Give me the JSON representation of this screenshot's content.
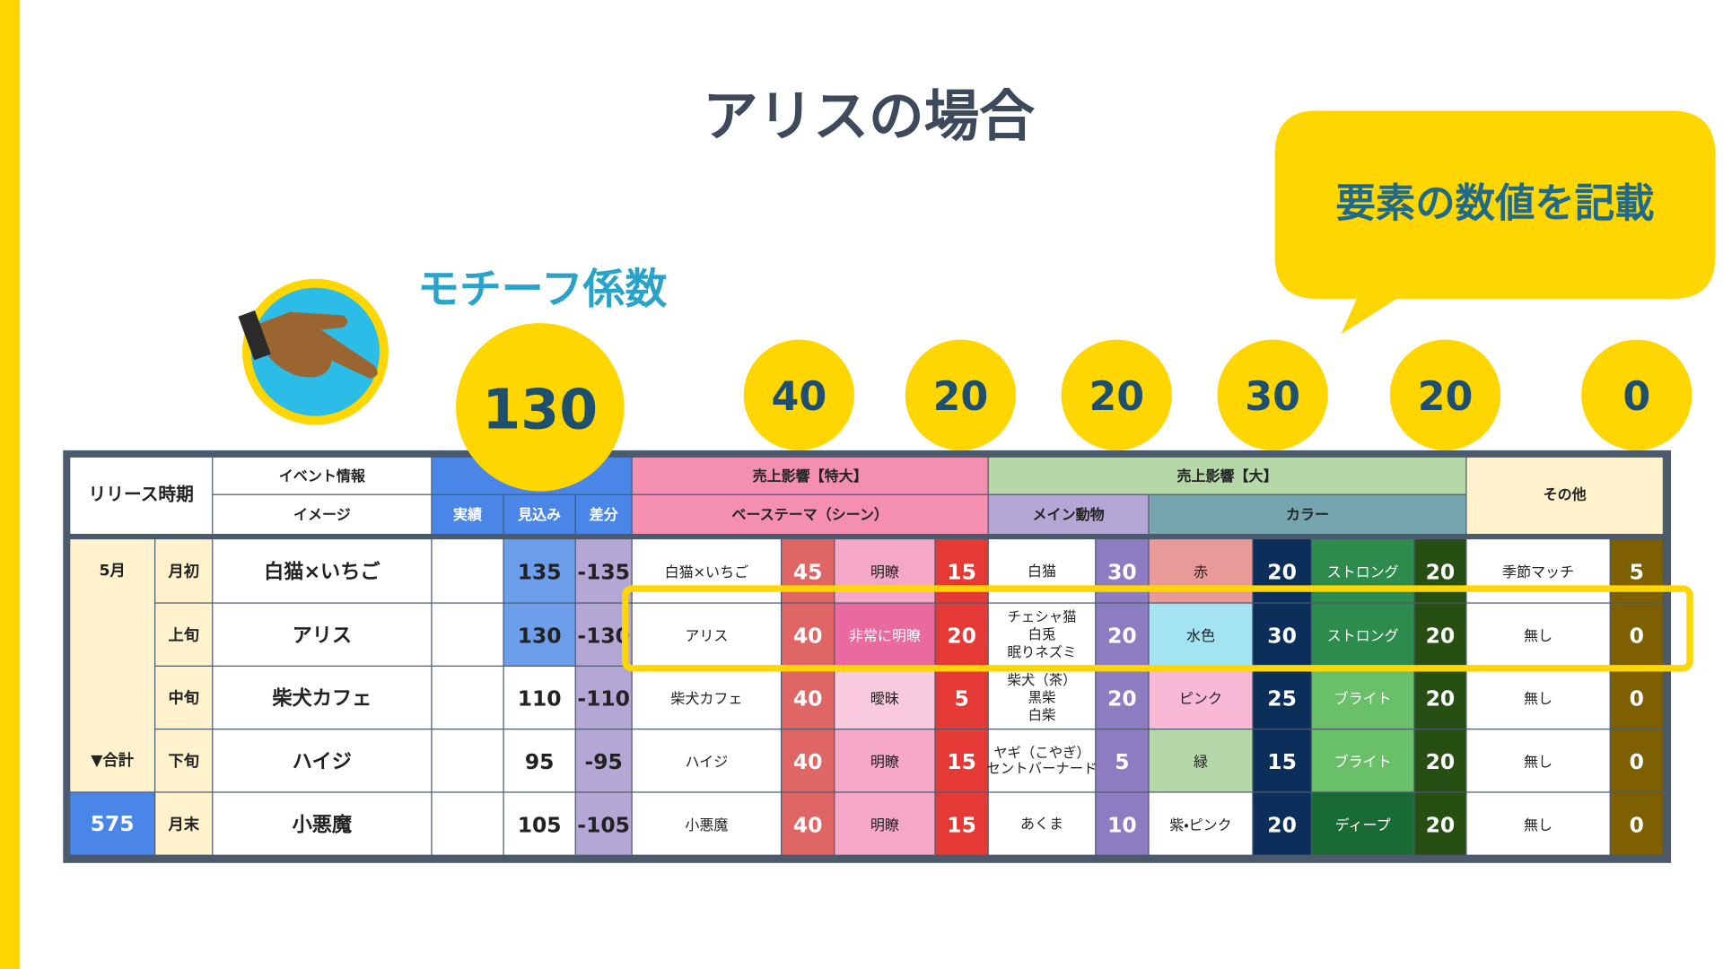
{
  "title": "アリスの場合",
  "callout": "要素の数値を記載",
  "motif_label": "モチーフ係数",
  "badges": [
    130,
    40,
    20,
    20,
    30,
    20,
    0
  ],
  "table": {
    "header": {
      "release": "リリース時期",
      "event": "イベント情報",
      "image": "イメージ",
      "actual": "実績",
      "forecast": "見込み",
      "diff": "差分",
      "sales_xl": "売上影響【特大】",
      "base_theme": "ベーステーマ（シーン）",
      "sales_l": "売上影響【大】",
      "main_animal": "メイン動物",
      "color": "カラー",
      "other": "その他"
    },
    "month": "5月",
    "total_label": "▼合計",
    "total": 575,
    "rows": [
      {
        "period": "月初",
        "event": "白猫×いちご",
        "forecast": 135,
        "diff": -135,
        "theme": "白猫×いちご",
        "theme_score": 45,
        "clarity": "明瞭",
        "clarity_score": 15,
        "animal": [
          "白猫"
        ],
        "animal_score": 30,
        "color": "赤",
        "color_score": 20,
        "tone": "ストロング",
        "tone_score": 20,
        "other": "季節マッチ",
        "other_score": 5
      },
      {
        "period": "上旬",
        "event": "アリス",
        "forecast": 130,
        "diff": -130,
        "theme": "アリス",
        "theme_score": 40,
        "clarity": "非常に明瞭",
        "clarity_score": 20,
        "animal": [
          "チェシャ猫",
          "白兎",
          "眠りネズミ"
        ],
        "animal_score": 20,
        "color": "水色",
        "color_score": 30,
        "tone": "ストロング",
        "tone_score": 20,
        "other": "無し",
        "other_score": 0
      },
      {
        "period": "中旬",
        "event": "柴犬カフェ",
        "forecast": 110,
        "diff": -110,
        "theme": "柴犬カフェ",
        "theme_score": 40,
        "clarity": "曖昧",
        "clarity_score": 5,
        "animal": [
          "柴犬（茶）",
          "黒柴",
          "白柴"
        ],
        "animal_score": 20,
        "color": "ピンク",
        "color_score": 25,
        "tone": "ブライト",
        "tone_score": 20,
        "other": "無し",
        "other_score": 0
      },
      {
        "period": "下旬",
        "event": "ハイジ",
        "forecast": 95,
        "diff": -95,
        "theme": "ハイジ",
        "theme_score": 40,
        "clarity": "明瞭",
        "clarity_score": 15,
        "animal": [
          "ヤギ（こやぎ）",
          "セントバーナード"
        ],
        "animal_score": 5,
        "color": "緑",
        "color_score": 15,
        "tone": "ブライト",
        "tone_score": 20,
        "other": "無し",
        "other_score": 0
      },
      {
        "period": "月末",
        "event": "小悪魔",
        "forecast": 105,
        "diff": -105,
        "theme": "小悪魔",
        "theme_score": 40,
        "clarity": "明瞭",
        "clarity_score": 15,
        "animal": [
          "あくま"
        ],
        "animal_score": 10,
        "color": "紫・ピンク",
        "color_score": 20,
        "tone": "ディープ",
        "tone_score": 20,
        "other": "無し",
        "other_score": 0
      }
    ]
  }
}
